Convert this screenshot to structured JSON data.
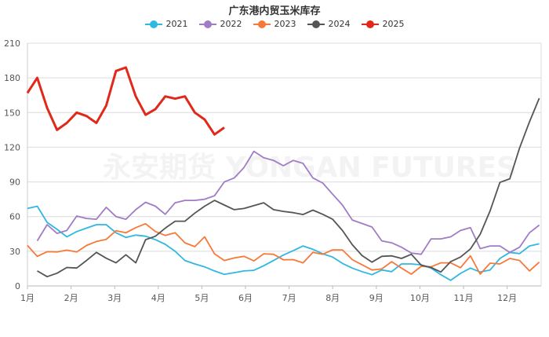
{
  "chart_data": {
    "type": "line",
    "title": "广东港内贸玉米库存",
    "watermark": "永安期货 YONGAN FUTURES",
    "x_unit": "week",
    "x_tick_labels": [
      "1月",
      "2月",
      "3月",
      "4月",
      "5月",
      "6月",
      "7月",
      "8月",
      "9月",
      "10月",
      "11月",
      "12月"
    ],
    "ylim": [
      0,
      210
    ],
    "y_ticks": [
      0,
      30,
      60,
      90,
      120,
      150,
      180,
      210
    ],
    "grid": "horizontal",
    "legend_position": "top",
    "series": [
      {
        "name": "2021",
        "color": "#2fb8e0",
        "start_week": 1,
        "values": [
          67,
          69,
          55,
          49,
          42.5,
          47,
          50,
          53,
          53,
          46,
          42,
          44,
          43,
          40,
          36,
          30,
          22,
          19,
          16.5,
          13,
          10,
          11.5,
          13,
          13.5,
          17.5,
          22,
          26.7,
          30.5,
          34.6,
          31.7,
          27.8,
          25,
          19.5,
          15.4,
          12.4,
          9.7,
          13.8,
          12.4,
          19,
          19,
          18.3,
          15.4,
          9.7,
          4.8,
          10.9,
          15.4,
          12,
          13.8,
          23.8,
          29,
          28,
          34.6,
          36.4
        ]
      },
      {
        "name": "2022",
        "color": "#a07cc5",
        "start_week": 2,
        "values": [
          39,
          53,
          45.5,
          48,
          60.5,
          58.4,
          57.7,
          68,
          60,
          57.7,
          66,
          72.4,
          69,
          62,
          72,
          74,
          74,
          75,
          78,
          90,
          93.4,
          102.5,
          116.5,
          111,
          108.6,
          104,
          108.6,
          106,
          93.4,
          89,
          79.4,
          70,
          57,
          54,
          51,
          39,
          37.3,
          33.5,
          28.5,
          27.4,
          40.7,
          40.7,
          42.5,
          48,
          50.4,
          32.3,
          34.6,
          34.6,
          29,
          33.5,
          46,
          52.7
        ]
      },
      {
        "name": "2023",
        "color": "#f7793a",
        "start_week": 1,
        "values": [
          35,
          25.6,
          29.6,
          29.4,
          31,
          29.4,
          35,
          38.5,
          40.3,
          47.7,
          46,
          50.4,
          53.8,
          47,
          43.7,
          46,
          37.3,
          34,
          42.5,
          27.8,
          22,
          24.2,
          25.6,
          21.7,
          27.8,
          27.4,
          22.6,
          22.8,
          20,
          29,
          27.4,
          31.2,
          31.2,
          22.8,
          18.3,
          13.8,
          14.7,
          21,
          15.4,
          10.2,
          17,
          16.5,
          20,
          20,
          15.8,
          26,
          10.2,
          19.7,
          19,
          23.8,
          22,
          13,
          20.6
        ]
      },
      {
        "name": "2024",
        "color": "#555555",
        "start_week": 2,
        "values": [
          13,
          8,
          11,
          16,
          15.5,
          22,
          29,
          24,
          20,
          27,
          20,
          40,
          43,
          50,
          56,
          56,
          63,
          69,
          74,
          70,
          66,
          67,
          69.5,
          72,
          66,
          64.5,
          63.4,
          61.8,
          65.6,
          62,
          57.7,
          48,
          35.7,
          26.2,
          20.6,
          25.6,
          26,
          23.8,
          27.4,
          18,
          16,
          12,
          21,
          25,
          32,
          44.8,
          65,
          89.6,
          92.7,
          119.4,
          142,
          162.4
        ]
      },
      {
        "name": "2025",
        "color": "#e0281b",
        "start_week": 1,
        "values": [
          167,
          180,
          154,
          135,
          141,
          150,
          147,
          141,
          156,
          186,
          189,
          164,
          148,
          153,
          164,
          162,
          164,
          150,
          144,
          131,
          137
        ]
      }
    ]
  }
}
